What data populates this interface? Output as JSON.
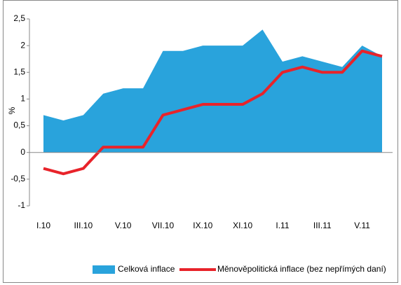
{
  "chart_data": {
    "type": "area-line",
    "ylabel": "%",
    "categories": [
      "I.10",
      null,
      "III.10",
      null,
      "V.10",
      null,
      "VII.10",
      null,
      "IX.10",
      null,
      "XI.10",
      null,
      "I.11",
      null,
      "III.11",
      null,
      "V.11",
      null
    ],
    "series": [
      {
        "name": "Celková inflace",
        "color": "#29a3dc",
        "kind": "area",
        "values": [
          0.7,
          0.6,
          0.7,
          1.1,
          1.2,
          1.2,
          1.9,
          1.9,
          2.0,
          2.0,
          2.0,
          2.3,
          1.7,
          1.8,
          1.7,
          1.6,
          2.0,
          1.8
        ]
      },
      {
        "name": "Měnověpolitická inflace (bez nepřímých daní)",
        "color": "#e8232a",
        "kind": "line",
        "values": [
          -0.3,
          -0.4,
          -0.3,
          0.1,
          0.1,
          0.1,
          0.7,
          0.8,
          0.9,
          0.9,
          0.9,
          1.1,
          1.5,
          1.6,
          1.5,
          1.5,
          1.9,
          1.8
        ]
      }
    ],
    "ylim": [
      -1,
      2.5
    ],
    "yticks": [
      {
        "value": 2.5,
        "label": "2,5"
      },
      2,
      {
        "value": 1.5,
        "label": "1,5"
      },
      1,
      {
        "value": 0.5,
        "label": "0,5"
      },
      0,
      {
        "value": -0.5,
        "label": "-0,5"
      },
      -1
    ],
    "legend": "bottom"
  }
}
